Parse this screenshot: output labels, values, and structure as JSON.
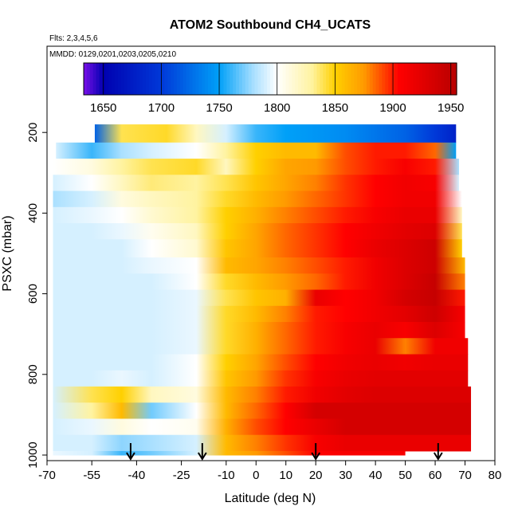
{
  "chart_data": {
    "type": "heatmap",
    "title": "ATOM2 Southbound CH4_UCATS",
    "subtitle_flights": "Flts: 2,3,4,5,6",
    "subtitle_dates": "MMDD: 0129,0201,0203,0205,0210",
    "xlabel": "Latitude (deg N)",
    "ylabel": "PSXC (mbar)",
    "xlim": [
      -70,
      80
    ],
    "ylim": [
      1000,
      0
    ],
    "x_ticks": [
      -70,
      -55,
      -40,
      -25,
      -10,
      0,
      10,
      20,
      30,
      40,
      50,
      60,
      70,
      80
    ],
    "y_ticks": [
      200,
      400,
      600,
      800,
      1000
    ],
    "colorbar": {
      "range": [
        1633,
        1955
      ],
      "ticks": [
        1650,
        1700,
        1750,
        1800,
        1850,
        1900,
        1950
      ],
      "colors": [
        "#7a10e8",
        "#0000b0",
        "#0038d8",
        "#00a0f8",
        "#aae0ff",
        "#ffffff",
        "#fff3a0",
        "#ffd000",
        "#ff9a00",
        "#ff0000",
        "#b80000"
      ],
      "color_stops": [
        1633,
        1650,
        1700,
        1750,
        1780,
        1800,
        1830,
        1850,
        1875,
        1905,
        1955
      ]
    },
    "arrows_latitude": [
      -42,
      -18,
      20,
      61
    ],
    "layers": [
      {
        "p_top": 180,
        "p_bottom": 225,
        "lat_start": -54,
        "lat_end": 67,
        "lat": [
          -54,
          -45,
          -30,
          -20,
          -10,
          0,
          10,
          20,
          30,
          40,
          50,
          60,
          67
        ],
        "ch4": [
          1720,
          1840,
          1845,
          1820,
          1790,
          1760,
          1750,
          1745,
          1740,
          1730,
          1720,
          1700,
          1680
        ]
      },
      {
        "p_top": 225,
        "p_bottom": 265,
        "lat_start": -67,
        "lat_end": 67,
        "lat": [
          -67,
          -55,
          -45,
          -35,
          -20,
          -10,
          0,
          10,
          20,
          30,
          40,
          50,
          60,
          67
        ],
        "ch4": [
          1790,
          1760,
          1780,
          1790,
          1800,
          1830,
          1850,
          1860,
          1860,
          1890,
          1900,
          1900,
          1885,
          1750
        ]
      },
      {
        "p_top": 265,
        "p_bottom": 305,
        "lat_start": -68,
        "lat_end": 68,
        "lat": [
          -68,
          -55,
          -45,
          -35,
          -20,
          -10,
          0,
          10,
          20,
          30,
          40,
          50,
          60,
          68
        ],
        "ch4": [
          1800,
          1810,
          1830,
          1840,
          1845,
          1820,
          1850,
          1870,
          1875,
          1890,
          1900,
          1910,
          1900,
          1780
        ]
      },
      {
        "p_top": 305,
        "p_bottom": 345,
        "lat_start": -68,
        "lat_end": 68,
        "lat": [
          -68,
          -55,
          -45,
          -35,
          -20,
          -10,
          0,
          10,
          20,
          30,
          40,
          50,
          60,
          68
        ],
        "ch4": [
          1790,
          1800,
          1820,
          1835,
          1830,
          1840,
          1855,
          1870,
          1880,
          1895,
          1905,
          1915,
          1910,
          1790
        ]
      },
      {
        "p_top": 345,
        "p_bottom": 385,
        "lat_start": -68,
        "lat_end": 69,
        "lat": [
          -68,
          -55,
          -45,
          -35,
          -20,
          -10,
          0,
          10,
          20,
          30,
          40,
          50,
          60,
          69
        ],
        "ch4": [
          1780,
          1790,
          1810,
          1820,
          1830,
          1845,
          1860,
          1875,
          1885,
          1895,
          1905,
          1915,
          1915,
          1800
        ]
      },
      {
        "p_top": 385,
        "p_bottom": 425,
        "lat_start": -68,
        "lat_end": 69,
        "lat": [
          -68,
          -55,
          -45,
          -35,
          -20,
          -10,
          0,
          10,
          20,
          30,
          40,
          50,
          60,
          69
        ],
        "ch4": [
          1790,
          1795,
          1800,
          1815,
          1830,
          1850,
          1865,
          1880,
          1890,
          1900,
          1910,
          1920,
          1920,
          1820
        ]
      },
      {
        "p_top": 425,
        "p_bottom": 465,
        "lat_start": -68,
        "lat_end": 69,
        "lat": [
          -68,
          -55,
          -45,
          -35,
          -20,
          -10,
          0,
          10,
          20,
          30,
          40,
          50,
          60,
          69
        ],
        "ch4": [
          1790,
          1790,
          1795,
          1805,
          1820,
          1850,
          1870,
          1885,
          1895,
          1905,
          1915,
          1925,
          1930,
          1840
        ]
      },
      {
        "p_top": 465,
        "p_bottom": 510,
        "lat_start": -68,
        "lat_end": 69,
        "lat": [
          -68,
          -55,
          -45,
          -35,
          -20,
          -10,
          0,
          10,
          20,
          30,
          40,
          50,
          60,
          69
        ],
        "ch4": [
          1790,
          1790,
          1790,
          1800,
          1815,
          1855,
          1870,
          1885,
          1895,
          1905,
          1920,
          1930,
          1940,
          1850
        ]
      },
      {
        "p_top": 510,
        "p_bottom": 550,
        "lat_start": -68,
        "lat_end": 70,
        "lat": [
          -68,
          -55,
          -45,
          -35,
          -20,
          -10,
          0,
          10,
          20,
          30,
          40,
          50,
          60,
          70
        ],
        "ch4": [
          1790,
          1790,
          1790,
          1795,
          1800,
          1860,
          1870,
          1880,
          1890,
          1900,
          1915,
          1930,
          1940,
          1860
        ]
      },
      {
        "p_top": 550,
        "p_bottom": 590,
        "lat_start": -68,
        "lat_end": 70,
        "lat": [
          -68,
          -55,
          -45,
          -35,
          -20,
          -10,
          0,
          10,
          20,
          30,
          40,
          50,
          60,
          70
        ],
        "ch4": [
          1790,
          1790,
          1790,
          1790,
          1800,
          1845,
          1860,
          1875,
          1885,
          1900,
          1915,
          1930,
          1945,
          1880
        ]
      },
      {
        "p_top": 590,
        "p_bottom": 630,
        "lat_start": -68,
        "lat_end": 70,
        "lat": [
          -68,
          -55,
          -45,
          -35,
          -20,
          -10,
          0,
          10,
          20,
          30,
          40,
          50,
          60,
          70
        ],
        "ch4": [
          1790,
          1790,
          1790,
          1790,
          1795,
          1840,
          1855,
          1865,
          1920,
          1905,
          1915,
          1935,
          1945,
          1900
        ]
      },
      {
        "p_top": 630,
        "p_bottom": 670,
        "lat_start": -68,
        "lat_end": 70,
        "lat": [
          -68,
          -55,
          -45,
          -35,
          -20,
          -10,
          0,
          10,
          20,
          30,
          40,
          50,
          60,
          70
        ],
        "ch4": [
          1790,
          1790,
          1790,
          1790,
          1795,
          1845,
          1860,
          1880,
          1900,
          1905,
          1915,
          1925,
          1940,
          1910
        ]
      },
      {
        "p_top": 670,
        "p_bottom": 710,
        "lat_start": -68,
        "lat_end": 70,
        "lat": [
          -68,
          -55,
          -45,
          -35,
          -20,
          -10,
          0,
          10,
          20,
          30,
          40,
          50,
          60,
          70
        ],
        "ch4": [
          1790,
          1790,
          1790,
          1790,
          1795,
          1845,
          1865,
          1885,
          1900,
          1910,
          1920,
          1910,
          1930,
          1910
        ]
      },
      {
        "p_top": 710,
        "p_bottom": 750,
        "lat_start": -68,
        "lat_end": 71,
        "lat": [
          -68,
          -55,
          -45,
          -35,
          -20,
          -10,
          0,
          10,
          20,
          30,
          40,
          50,
          60,
          71
        ],
        "ch4": [
          1790,
          1790,
          1790,
          1790,
          1795,
          1845,
          1865,
          1885,
          1900,
          1910,
          1920,
          1880,
          1915,
          1915
        ]
      },
      {
        "p_top": 750,
        "p_bottom": 790,
        "lat_start": -68,
        "lat_end": 71,
        "lat": [
          -68,
          -55,
          -45,
          -35,
          -20,
          -10,
          0,
          10,
          20,
          30,
          40,
          50,
          60,
          71
        ],
        "ch4": [
          1790,
          1790,
          1790,
          1790,
          1800,
          1850,
          1870,
          1890,
          1905,
          1915,
          1920,
          1915,
          1920,
          1920
        ]
      },
      {
        "p_top": 790,
        "p_bottom": 830,
        "lat_start": -68,
        "lat_end": 71,
        "lat": [
          -68,
          -55,
          -45,
          -35,
          -20,
          -10,
          0,
          10,
          20,
          30,
          40,
          50,
          60,
          71
        ],
        "ch4": [
          1790,
          1790,
          1795,
          1790,
          1800,
          1855,
          1875,
          1895,
          1910,
          1920,
          1925,
          1925,
          1925,
          1925
        ]
      },
      {
        "p_top": 830,
        "p_bottom": 870,
        "lat_start": -68,
        "lat_end": 72,
        "lat": [
          -68,
          -55,
          -45,
          -35,
          -20,
          -10,
          0,
          10,
          20,
          30,
          40,
          50,
          60,
          72
        ],
        "ch4": [
          1790,
          1840,
          1850,
          1820,
          1810,
          1860,
          1880,
          1900,
          1915,
          1925,
          1930,
          1930,
          1930,
          1930
        ]
      },
      {
        "p_top": 870,
        "p_bottom": 910,
        "lat_start": -68,
        "lat_end": 72,
        "lat": [
          -68,
          -55,
          -45,
          -35,
          -20,
          -10,
          0,
          10,
          20,
          30,
          40,
          50,
          60,
          72
        ],
        "ch4": [
          1790,
          1830,
          1860,
          1770,
          1800,
          1860,
          1885,
          1905,
          1935,
          1935,
          1935,
          1935,
          1935,
          1935
        ]
      },
      {
        "p_top": 910,
        "p_bottom": 950,
        "lat_start": -68,
        "lat_end": 72,
        "lat": [
          -68,
          -55,
          -45,
          -35,
          -20,
          -10,
          0,
          10,
          20,
          30,
          40,
          50,
          60,
          72
        ],
        "ch4": [
          1790,
          1795,
          1810,
          1800,
          1805,
          1865,
          1890,
          1905,
          1920,
          1935,
          1935,
          1935,
          1935,
          1935
        ]
      },
      {
        "p_top": 950,
        "p_bottom": 990,
        "lat_start": -68,
        "lat_end": 72,
        "lat": [
          -68,
          -55,
          -45,
          -35,
          -20,
          -10,
          0,
          10,
          20,
          30,
          40,
          50,
          60,
          72
        ],
        "ch4": [
          1790,
          1790,
          1775,
          1780,
          1790,
          1860,
          1880,
          1895,
          1910,
          1920,
          1920,
          1920,
          1920,
          1920
        ]
      },
      {
        "p_top": 990,
        "p_bottom": 1000,
        "lat_start": -68,
        "lat_end": 50,
        "lat": [
          -68,
          -55,
          -45,
          -35,
          -20,
          -10,
          0,
          10,
          20,
          30,
          40,
          50
        ],
        "ch4": [
          1795,
          1790,
          1760,
          1770,
          1790,
          1860,
          1875,
          1890,
          1905,
          1910,
          1910,
          1910
        ]
      }
    ]
  }
}
